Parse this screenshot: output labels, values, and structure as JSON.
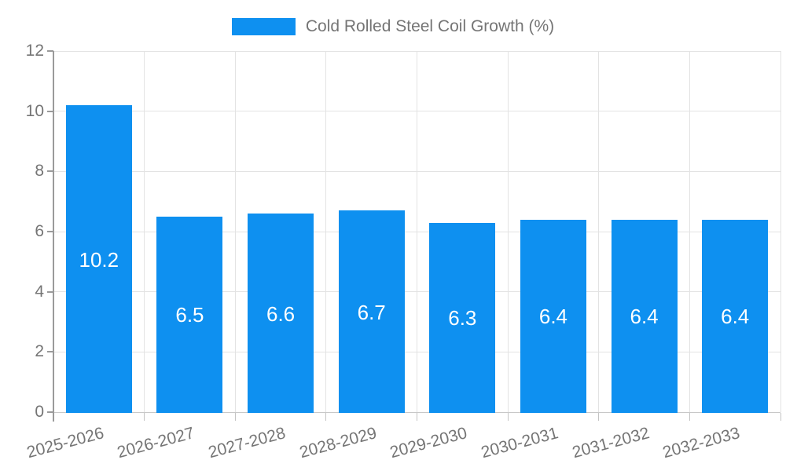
{
  "legend": {
    "label": "Cold Rolled Steel Coil Growth (%)"
  },
  "chart_data": {
    "type": "bar",
    "title": "",
    "categories": [
      "2025-2026",
      "2026-2027",
      "2027-2028",
      "2028-2029",
      "2029-2030",
      "2030-2031",
      "2031-2032",
      "2032-2033"
    ],
    "series": [
      {
        "name": "Cold Rolled Steel Coil Growth (%)",
        "values": [
          10.2,
          6.5,
          6.6,
          6.7,
          6.3,
          6.4,
          6.4,
          6.4
        ]
      }
    ],
    "value_labels": [
      "10.2",
      "6.5",
      "6.6",
      "6.7",
      "6.3",
      "6.4",
      "6.4",
      "6.4"
    ],
    "xlabel": "",
    "ylabel": "",
    "ylim": [
      0,
      12
    ],
    "yticks": [
      0,
      2,
      4,
      6,
      8,
      10,
      12
    ],
    "grid": true,
    "legend_position": "top",
    "x_label_rotation_deg": -15,
    "colors": {
      "bar": "#0e90f0",
      "value_label": "#ffffff",
      "axis_text": "#757575",
      "grid_line": "#e3e3e3",
      "axis_line": "#9a9a9a",
      "x_tick": "#c4c4c4",
      "background": "#ffffff"
    }
  }
}
